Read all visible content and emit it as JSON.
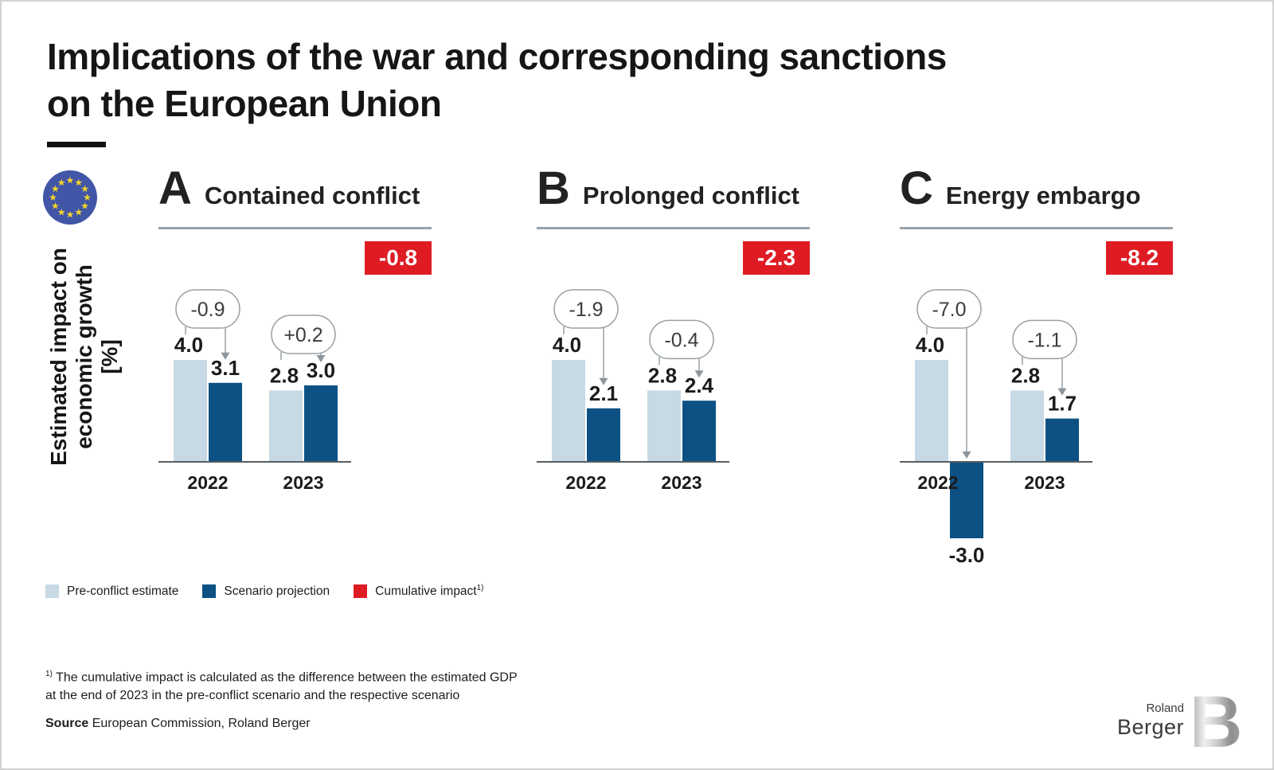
{
  "header": {
    "title_line1": "Implications of the war and corresponding sanctions",
    "title_line2": "on the European Union"
  },
  "y_axis_label": {
    "line1": "Estimated impact on",
    "line2": "economic growth [%]"
  },
  "colors": {
    "pre_conflict": "#c7d9e4",
    "scenario": "#0d5184",
    "cumulative": "#df1b24",
    "connector": "#98a0a6",
    "arrow_head": "#8d959b",
    "axis": "#555e63",
    "eu_blue": "#4156a6",
    "eu_star": "#f6d32d"
  },
  "chart_data": [
    {
      "type": "bar",
      "panel_letter": "A",
      "title": "Contained conflict",
      "cumulative_impact": "-0.8",
      "categories": [
        "2022",
        "2023"
      ],
      "series": [
        {
          "name": "Pre-conflict estimate",
          "values": [
            4.0,
            2.8
          ]
        },
        {
          "name": "Scenario projection",
          "values": [
            3.1,
            3.0
          ]
        }
      ],
      "deltas": [
        "-0.9",
        "+0.2"
      ],
      "ylabel": "Estimated impact on economic growth [%]",
      "ylim": [
        -3.5,
        4.5
      ]
    },
    {
      "type": "bar",
      "panel_letter": "B",
      "title": "Prolonged conflict",
      "cumulative_impact": "-2.3",
      "categories": [
        "2022",
        "2023"
      ],
      "series": [
        {
          "name": "Pre-conflict estimate",
          "values": [
            4.0,
            2.8
          ]
        },
        {
          "name": "Scenario projection",
          "values": [
            2.1,
            2.4
          ]
        }
      ],
      "deltas": [
        "-1.9",
        "-0.4"
      ],
      "ylabel": "Estimated impact on economic growth [%]",
      "ylim": [
        -3.5,
        4.5
      ]
    },
    {
      "type": "bar",
      "panel_letter": "C",
      "title": "Energy embargo",
      "cumulative_impact": "-8.2",
      "categories": [
        "2022",
        "2023"
      ],
      "series": [
        {
          "name": "Pre-conflict estimate",
          "values": [
            4.0,
            2.8
          ]
        },
        {
          "name": "Scenario projection",
          "values": [
            -3.0,
            1.7
          ]
        }
      ],
      "deltas": [
        "-7.0",
        "-1.1"
      ],
      "ylabel": "Estimated impact on economic growth [%]",
      "ylim": [
        -3.5,
        4.5
      ]
    }
  ],
  "legend": {
    "items": [
      {
        "label": "Pre-conflict estimate",
        "sup": ""
      },
      {
        "label": "Scenario projection",
        "sup": ""
      },
      {
        "label": "Cumulative impact",
        "sup": "1)"
      }
    ]
  },
  "footnote": {
    "sup": "1)",
    "line1": "The cumulative impact is calculated as the difference between the estimated GDP",
    "line2": "at the end of 2023 in the pre-conflict scenario and the respective scenario"
  },
  "source": {
    "label": "Source",
    "text": " European Commission, Roland Berger"
  },
  "logo": {
    "line1": "Roland",
    "line2": "Berger",
    "monogram": "B"
  }
}
